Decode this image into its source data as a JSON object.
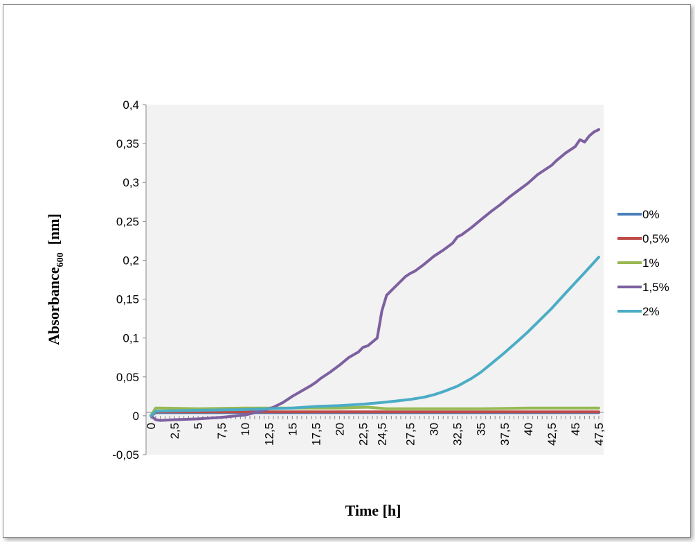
{
  "chart_data": {
    "type": "line",
    "title": "",
    "xlabel": "Time  [h]",
    "ylabel_main": "Absorbance",
    "ylabel_sub": "600",
    "ylabel_unit": "  [nm]",
    "xlim": [
      0,
      47.5
    ],
    "ylim": [
      -0.05,
      0.4
    ],
    "x_ticks": [
      "0",
      "2,5",
      "5",
      "7,5",
      "10",
      "12,5",
      "15",
      "17,5",
      "20",
      "22,5",
      "24,5",
      "27,5",
      "30",
      "32,5",
      "35",
      "37,5",
      "40",
      "42,5",
      "45",
      "47,5"
    ],
    "x_tick_values": [
      0,
      2.5,
      5,
      7.5,
      10,
      12.5,
      15,
      17.5,
      20,
      22.5,
      24.5,
      27.5,
      30,
      32.5,
      35,
      37.5,
      40,
      42.5,
      45,
      47.5
    ],
    "y_ticks": [
      "-0,05",
      "0",
      "0,05",
      "0,1",
      "0,15",
      "0,2",
      "0,25",
      "0,3",
      "0,35",
      "0,4"
    ],
    "y_tick_values": [
      -0.05,
      0,
      0.05,
      0.1,
      0.15,
      0.2,
      0.25,
      0.3,
      0.35,
      0.4
    ],
    "grid": false,
    "legend_position": "right",
    "series": [
      {
        "name": "0%",
        "color": "#4A7EBB",
        "x": [
          0,
          0.5,
          47.5
        ],
        "y": [
          0,
          0.004,
          0.004
        ]
      },
      {
        "name": "0,5%",
        "color": "#BE4B48",
        "x": [
          0,
          0.5,
          47.5
        ],
        "y": [
          0,
          0.005,
          0.005
        ]
      },
      {
        "name": "1%",
        "color": "#98B954",
        "x": [
          0,
          0.5,
          1,
          5,
          10,
          15,
          20,
          23,
          25,
          30,
          35,
          40,
          45,
          47.5
        ],
        "y": [
          0,
          0.01,
          0.01,
          0.009,
          0.01,
          0.01,
          0.01,
          0.011,
          0.009,
          0.009,
          0.009,
          0.01,
          0.01,
          0.01
        ]
      },
      {
        "name": "1,5%",
        "color": "#7D60A0",
        "x": [
          0,
          0.5,
          1,
          2.5,
          5,
          7.5,
          10,
          11,
          12,
          12.5,
          13,
          14,
          15,
          16,
          17,
          17.5,
          18,
          19,
          20,
          21,
          22,
          22.5,
          23,
          23.5,
          24,
          24.5,
          25,
          26,
          27,
          27.5,
          28,
          29,
          30,
          31,
          32,
          32.5,
          33,
          34,
          35,
          36,
          37,
          37.5,
          38,
          39,
          40,
          41,
          42,
          42.5,
          43,
          44,
          45,
          45.5,
          46,
          46.5,
          47,
          47.5
        ],
        "y": [
          0,
          -0.005,
          -0.006,
          -0.005,
          -0.004,
          -0.002,
          0.001,
          0.004,
          0.007,
          0.009,
          0.011,
          0.017,
          0.025,
          0.032,
          0.039,
          0.043,
          0.048,
          0.056,
          0.065,
          0.075,
          0.082,
          0.088,
          0.09,
          0.095,
          0.1,
          0.135,
          0.155,
          0.167,
          0.179,
          0.183,
          0.186,
          0.195,
          0.205,
          0.213,
          0.222,
          0.23,
          0.233,
          0.242,
          0.252,
          0.262,
          0.271,
          0.276,
          0.281,
          0.29,
          0.299,
          0.31,
          0.318,
          0.322,
          0.328,
          0.338,
          0.346,
          0.355,
          0.352,
          0.36,
          0.365,
          0.368
        ]
      },
      {
        "name": "2%",
        "color": "#4BACC6",
        "x": [
          0,
          0.5,
          5,
          10,
          12.5,
          15,
          17.5,
          20,
          22.5,
          24.5,
          26,
          27.5,
          29,
          30,
          31,
          32.5,
          34,
          35,
          36,
          37.5,
          39,
          40,
          41,
          42.5,
          44,
          45,
          46,
          47.5
        ],
        "y": [
          0,
          0.006,
          0.007,
          0.008,
          0.009,
          0.01,
          0.012,
          0.013,
          0.015,
          0.017,
          0.019,
          0.021,
          0.024,
          0.027,
          0.031,
          0.038,
          0.048,
          0.056,
          0.066,
          0.081,
          0.097,
          0.108,
          0.12,
          0.138,
          0.158,
          0.171,
          0.184,
          0.204
        ]
      }
    ]
  }
}
